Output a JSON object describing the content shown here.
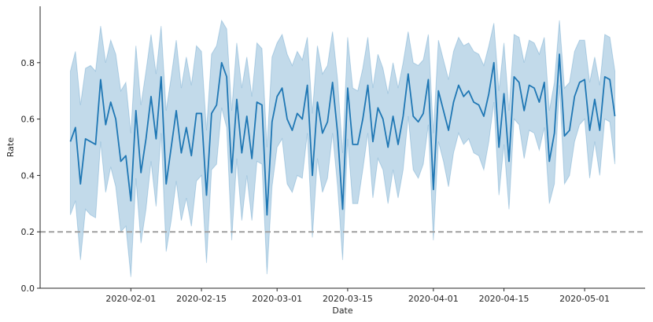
{
  "chart_data": {
    "type": "line",
    "title": "",
    "xlabel": "Date",
    "ylabel": "Rate",
    "x_start": "2020-01-20",
    "x_end": "2020-05-08",
    "xlim": [
      "2020-01-14",
      "2020-05-13"
    ],
    "ylim": [
      0,
      1.0
    ],
    "yticks": [
      0.0,
      0.2,
      0.4,
      0.6,
      0.8
    ],
    "ytick_labels": [
      "0.0",
      "0.2",
      "0.4",
      "0.6",
      "0.8"
    ],
    "xticks": [
      "2020-02-01",
      "2020-02-15",
      "2020-03-01",
      "2020-03-15",
      "2020-04-01",
      "2020-04-15",
      "2020-05-01"
    ],
    "xtick_labels": [
      "2020-02-01",
      "2020-02-15",
      "2020-03-01",
      "2020-03-15",
      "2020-04-01",
      "2020-04-15",
      "2020-05-01"
    ],
    "grid": false,
    "line_color": "#1f77b4",
    "band_color": "#aecde3",
    "reference_line": {
      "y": 0.2,
      "style": "dashed",
      "color": "#a0a0a0"
    },
    "series": [
      {
        "values": [
          0.52,
          0.57,
          0.37,
          0.53,
          0.52,
          0.51,
          0.74,
          0.58,
          0.66,
          0.6,
          0.45,
          0.47,
          0.31,
          0.63,
          0.41,
          0.53,
          0.68,
          0.53,
          0.75,
          0.37,
          0.5,
          0.63,
          0.48,
          0.57,
          0.47,
          0.62,
          0.62,
          0.33,
          0.62,
          0.65,
          0.8,
          0.75,
          0.41,
          0.67,
          0.48,
          0.61,
          0.46,
          0.66,
          0.65,
          0.26,
          0.59,
          0.68,
          0.71,
          0.6,
          0.56,
          0.62,
          0.6,
          0.72,
          0.4,
          0.66,
          0.55,
          0.59,
          0.73,
          0.55,
          0.28,
          0.71,
          0.51,
          0.51,
          0.6,
          0.72,
          0.52,
          0.64,
          0.6,
          0.5,
          0.61,
          0.51,
          0.61,
          0.76,
          0.61,
          0.59,
          0.62,
          0.74,
          0.35,
          0.7,
          0.63,
          0.56,
          0.66,
          0.72,
          0.68,
          0.7,
          0.66,
          0.65,
          0.61,
          0.69,
          0.8,
          0.5,
          0.69,
          0.45,
          0.75,
          0.73,
          0.63,
          0.72,
          0.71,
          0.66,
          0.73,
          0.45,
          0.55,
          0.83,
          0.54,
          0.56,
          0.68,
          0.73,
          0.74,
          0.56,
          0.67,
          0.56,
          0.75,
          0.74,
          0.61
        ],
        "upper": [
          0.77,
          0.84,
          0.65,
          0.78,
          0.79,
          0.77,
          0.93,
          0.8,
          0.88,
          0.83,
          0.7,
          0.73,
          0.55,
          0.86,
          0.65,
          0.77,
          0.9,
          0.76,
          0.93,
          0.63,
          0.75,
          0.88,
          0.71,
          0.82,
          0.72,
          0.86,
          0.84,
          0.56,
          0.83,
          0.86,
          0.95,
          0.92,
          0.63,
          0.87,
          0.71,
          0.82,
          0.68,
          0.87,
          0.85,
          0.5,
          0.82,
          0.87,
          0.9,
          0.83,
          0.79,
          0.84,
          0.81,
          0.89,
          0.62,
          0.86,
          0.76,
          0.79,
          0.91,
          0.74,
          0.48,
          0.89,
          0.71,
          0.7,
          0.78,
          0.89,
          0.71,
          0.83,
          0.78,
          0.69,
          0.8,
          0.71,
          0.8,
          0.91,
          0.8,
          0.79,
          0.81,
          0.9,
          0.55,
          0.88,
          0.81,
          0.74,
          0.84,
          0.89,
          0.86,
          0.87,
          0.84,
          0.83,
          0.79,
          0.86,
          0.94,
          0.7,
          0.87,
          0.63,
          0.9,
          0.89,
          0.8,
          0.88,
          0.87,
          0.83,
          0.89,
          0.63,
          0.73,
          0.95,
          0.71,
          0.73,
          0.84,
          0.88,
          0.88,
          0.73,
          0.82,
          0.72,
          0.9,
          0.89,
          0.77
        ],
        "lower": [
          0.26,
          0.31,
          0.1,
          0.28,
          0.26,
          0.25,
          0.52,
          0.34,
          0.43,
          0.36,
          0.2,
          0.22,
          0.04,
          0.39,
          0.16,
          0.28,
          0.45,
          0.29,
          0.55,
          0.13,
          0.24,
          0.38,
          0.24,
          0.32,
          0.22,
          0.38,
          0.4,
          0.09,
          0.42,
          0.44,
          0.64,
          0.57,
          0.17,
          0.46,
          0.24,
          0.4,
          0.24,
          0.45,
          0.44,
          0.05,
          0.36,
          0.5,
          0.53,
          0.37,
          0.34,
          0.4,
          0.39,
          0.55,
          0.18,
          0.46,
          0.34,
          0.39,
          0.55,
          0.36,
          0.1,
          0.53,
          0.3,
          0.3,
          0.42,
          0.55,
          0.32,
          0.46,
          0.42,
          0.3,
          0.42,
          0.32,
          0.42,
          0.61,
          0.42,
          0.39,
          0.44,
          0.58,
          0.17,
          0.52,
          0.45,
          0.36,
          0.48,
          0.55,
          0.51,
          0.53,
          0.48,
          0.47,
          0.42,
          0.52,
          0.66,
          0.33,
          0.51,
          0.28,
          0.6,
          0.58,
          0.46,
          0.56,
          0.55,
          0.49,
          0.57,
          0.3,
          0.37,
          0.72,
          0.37,
          0.4,
          0.52,
          0.58,
          0.6,
          0.39,
          0.52,
          0.4,
          0.6,
          0.59,
          0.44
        ]
      }
    ]
  }
}
